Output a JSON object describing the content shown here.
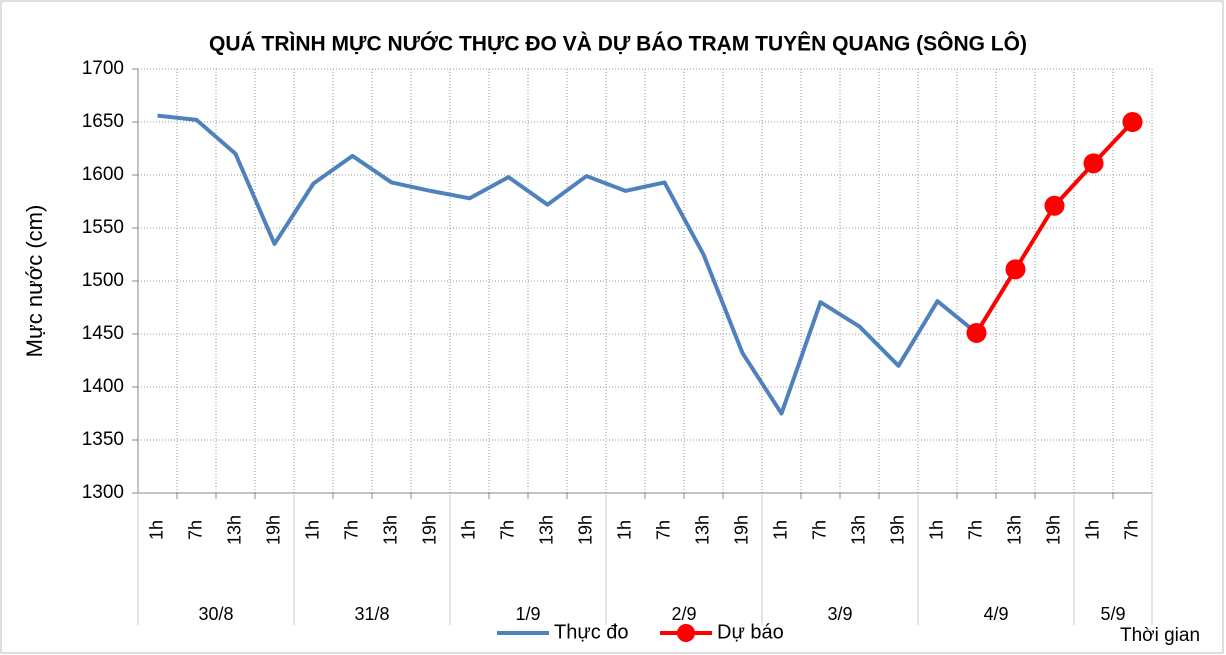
{
  "chart_data": {
    "type": "line",
    "title": "QUÁ TRÌNH MỰC NƯỚC THỰC ĐO VÀ DỰ BÁO TRẠM TUYÊN QUANG (SÔNG LÔ)",
    "y_label": "Mực nước (cm)",
    "x_label": "Thời gian",
    "groups": [
      {
        "name": "30/8",
        "categories": [
          "1h",
          "7h",
          "13h",
          "19h"
        ]
      },
      {
        "name": "31/8",
        "categories": [
          "1h",
          "7h",
          "13h",
          "19h"
        ]
      },
      {
        "name": "1/9",
        "categories": [
          "1h",
          "7h",
          "13h",
          "19h"
        ]
      },
      {
        "name": "2/9",
        "categories": [
          "1h",
          "7h",
          "13h",
          "19h"
        ]
      },
      {
        "name": "3/9",
        "categories": [
          "1h",
          "7h",
          "13h",
          "19h"
        ]
      },
      {
        "name": "4/9",
        "categories": [
          "1h",
          "7h",
          "13h",
          "19h"
        ]
      },
      {
        "name": "5/9",
        "categories": [
          "1h",
          "7h"
        ]
      }
    ],
    "series": [
      {
        "name": "Thực đo",
        "color": "#4f81bd",
        "marker": false,
        "values": [
          1656,
          1652,
          1620,
          1535,
          1592,
          1618,
          1593,
          1585,
          1578,
          1598,
          1572,
          1599,
          1585,
          1593,
          1525,
          1432,
          1375,
          1480,
          1457,
          1420,
          1481,
          1451,
          null,
          null,
          null,
          null
        ]
      },
      {
        "name": "Dự báo",
        "color": "#ff0000",
        "marker": true,
        "values": [
          null,
          null,
          null,
          null,
          null,
          null,
          null,
          null,
          null,
          null,
          null,
          null,
          null,
          null,
          null,
          null,
          null,
          null,
          null,
          null,
          null,
          1451,
          1511,
          1571,
          1611,
          1650
        ]
      }
    ],
    "ylim": [
      1300,
      1700
    ],
    "yticks": [
      1300,
      1350,
      1400,
      1450,
      1500,
      1550,
      1600,
      1650,
      1700
    ],
    "grid": true
  }
}
